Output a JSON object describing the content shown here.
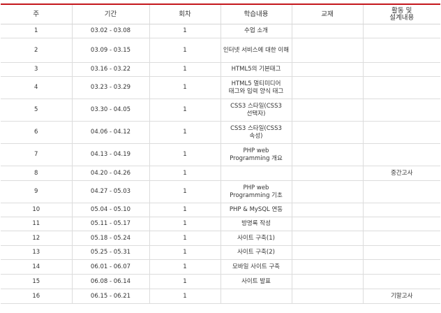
{
  "table": {
    "headers": {
      "week": "주",
      "period": "기간",
      "count": "회차",
      "content": "학습내용",
      "textbook": "교재",
      "activity_line1": "활동 및",
      "activity_line2": "설계내용"
    },
    "rows": [
      {
        "week": "1",
        "period": "03.02 - 03.08",
        "count": "1",
        "content": "수업 소개",
        "textbook": "",
        "activity": ""
      },
      {
        "week": "2",
        "period": "03.09 - 03.15",
        "count": "1",
        "content": "인터넷 서비스에 대한 이해",
        "textbook": "",
        "activity": ""
      },
      {
        "week": "3",
        "period": "03.16 - 03.22",
        "count": "1",
        "content": "HTML5의 기본태그",
        "textbook": "",
        "activity": ""
      },
      {
        "week": "4",
        "period": "03.23 - 03.29",
        "count": "1",
        "content": "HTML5 멀티미디어 태그와 입력 양식 태그",
        "textbook": "",
        "activity": ""
      },
      {
        "week": "5",
        "period": "03.30 - 04.05",
        "count": "1",
        "content": "CSS3 스타일(CSS3 선택자)",
        "textbook": "",
        "activity": ""
      },
      {
        "week": "6",
        "period": "04.06 - 04.12",
        "count": "1",
        "content": "CSS3 스타일(CSS3 속성)",
        "textbook": "",
        "activity": ""
      },
      {
        "week": "7",
        "period": "04.13 - 04.19",
        "count": "1",
        "content": "PHP web Programming 개요",
        "textbook": "",
        "activity": ""
      },
      {
        "week": "8",
        "period": "04.20 - 04.26",
        "count": "1",
        "content": "",
        "textbook": "",
        "activity": "중간고사"
      },
      {
        "week": "9",
        "period": "04.27 - 05.03",
        "count": "1",
        "content": "PHP web Programming 기초",
        "textbook": "",
        "activity": ""
      },
      {
        "week": "10",
        "period": "05.04 - 05.10",
        "count": "1",
        "content": "PHP & MySQL 연동",
        "textbook": "",
        "activity": ""
      },
      {
        "week": "11",
        "period": "05.11 - 05.17",
        "count": "1",
        "content": "방명록 작성",
        "textbook": "",
        "activity": ""
      },
      {
        "week": "12",
        "period": "05.18 - 05.24",
        "count": "1",
        "content": "사이트 구축(1)",
        "textbook": "",
        "activity": ""
      },
      {
        "week": "13",
        "period": "05.25 - 05.31",
        "count": "1",
        "content": "사이트 구축(2)",
        "textbook": "",
        "activity": ""
      },
      {
        "week": "14",
        "period": "06.01 - 06.07",
        "count": "1",
        "content": "모바일 사이트 구축",
        "textbook": "",
        "activity": ""
      },
      {
        "week": "15",
        "period": "06.08 - 06.14",
        "count": "1",
        "content": "사이트 발표",
        "textbook": "",
        "activity": ""
      },
      {
        "week": "16",
        "period": "06.15 - 06.21",
        "count": "1",
        "content": "",
        "textbook": "",
        "activity": "기말고사"
      }
    ]
  },
  "colors": {
    "header_top_border": "#c4161c",
    "grid_line": "#dcdcdc",
    "text": "#333333"
  }
}
